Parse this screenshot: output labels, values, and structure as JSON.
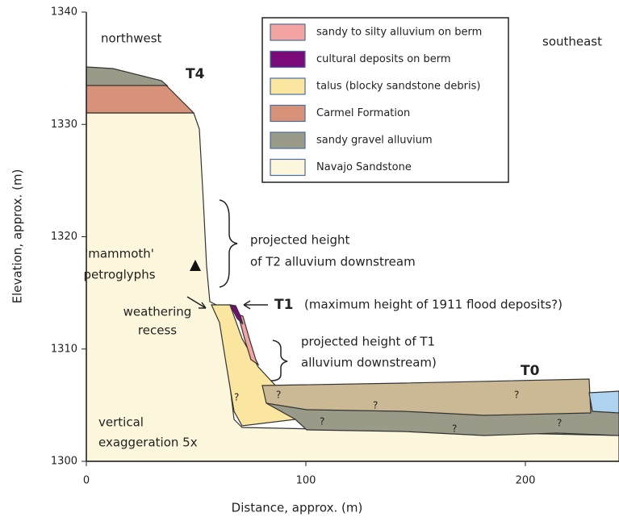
{
  "axes": {
    "x_label": "Distance, approx. (m)",
    "y_label": "Elevation, approx. (m)",
    "xticks": [
      0,
      100,
      200
    ],
    "yticks": [
      1300,
      1310,
      1320,
      1330,
      1340
    ]
  },
  "legend": [
    {
      "label": "sandy to silty alluvium on berm",
      "color": "#f4a3a3"
    },
    {
      "label": "cultural deposits on berm",
      "color": "#7a0a7a"
    },
    {
      "label": "talus (blocky sandstone debris)",
      "color": "#fbe6a0"
    },
    {
      "label": "Carmel Formation",
      "color": "#d9927a"
    },
    {
      "label": "sandy gravel alluvium",
      "color": "#9a9a88"
    },
    {
      "label": "Navajo Sandstone",
      "color": "#fbf6dc"
    }
  ],
  "annotations": {
    "northwest": "northwest",
    "southeast": "southeast",
    "t4": "T4",
    "t1": "T1",
    "t0": "T0",
    "t1_note": "(maximum height of 1911 flood deposits?)",
    "petroglyphs": [
      "'mammoth'",
      "petroglyphs"
    ],
    "recess": [
      "weathering",
      "recess"
    ],
    "t2_projection": [
      "projected height",
      "of T2 alluvium downstream"
    ],
    "t1_projection": [
      "projected height of T1",
      "alluvium downstream)"
    ],
    "exaggeration": [
      "vertical",
      "exaggeration 5x"
    ]
  }
}
